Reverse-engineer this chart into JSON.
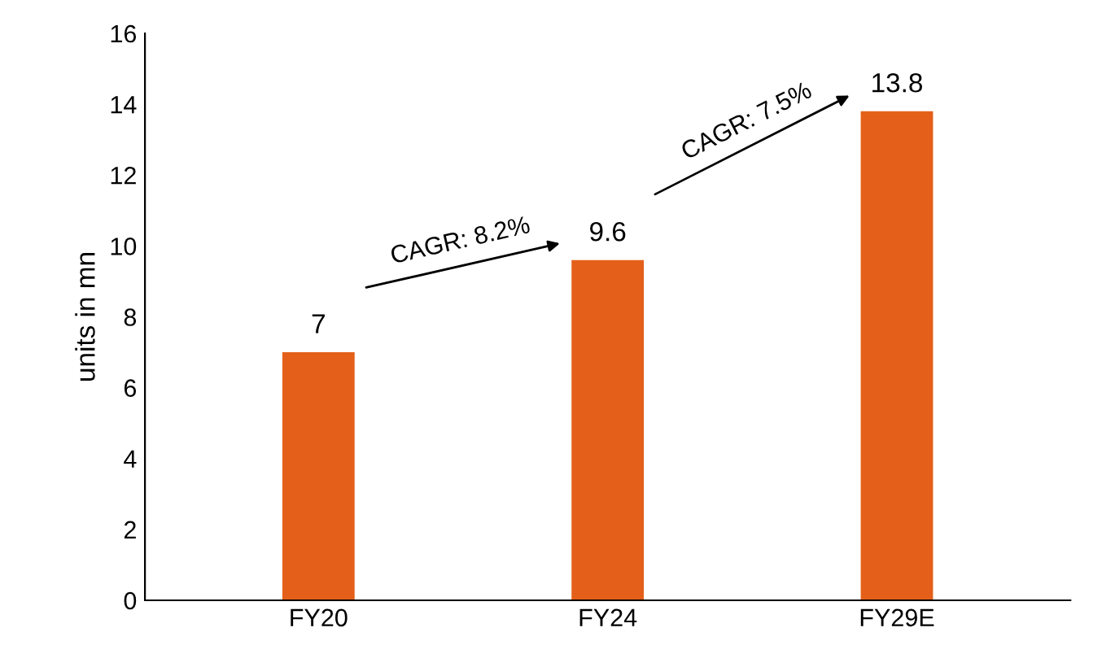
{
  "chart_data": {
    "type": "bar",
    "ylabel": "units in mn",
    "categories": [
      "FY20",
      "FY24",
      "FY29E"
    ],
    "values": [
      7,
      9.6,
      13.8
    ],
    "color": "#e4601a",
    "ylim": [
      0,
      16
    ],
    "yticks": [
      0,
      2,
      4,
      6,
      8,
      10,
      12,
      14,
      16
    ],
    "data_labels": true,
    "grid": false,
    "legend": false,
    "annotations": [
      "CAGR: 8.2%",
      "CAGR: 7.5%"
    ]
  }
}
